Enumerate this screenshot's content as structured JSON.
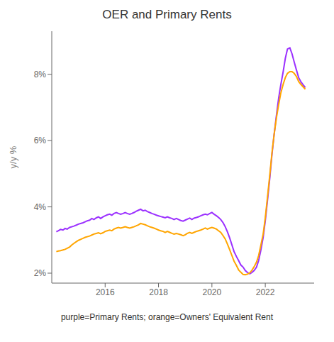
{
  "chart_data": {
    "type": "line",
    "title": "OER and Primary Rents",
    "y_label": "y/y %",
    "caption": "purple=Primary Rents; orange=Owners' Equivalent Rent",
    "xlim": [
      2014.0,
      2023.83
    ],
    "xticks": [
      2016,
      2018,
      2020,
      2022
    ],
    "ylim": [
      1.7,
      9.3
    ],
    "yticks": [
      {
        "value": 2,
        "label": "2%"
      },
      {
        "value": 4,
        "label": "4%"
      },
      {
        "value": 6,
        "label": "6%"
      },
      {
        "value": 8,
        "label": "8%"
      }
    ],
    "grid": false,
    "x": [
      2014.17,
      2014.25,
      2014.33,
      2014.42,
      2014.5,
      2014.58,
      2014.67,
      2014.75,
      2014.83,
      2014.92,
      2015.0,
      2015.08,
      2015.17,
      2015.25,
      2015.33,
      2015.42,
      2015.5,
      2015.58,
      2015.67,
      2015.75,
      2015.83,
      2015.92,
      2016.0,
      2016.08,
      2016.17,
      2016.25,
      2016.33,
      2016.42,
      2016.5,
      2016.58,
      2016.67,
      2016.75,
      2016.83,
      2016.92,
      2017.0,
      2017.08,
      2017.17,
      2017.25,
      2017.33,
      2017.42,
      2017.5,
      2017.58,
      2017.67,
      2017.75,
      2017.83,
      2017.92,
      2018.0,
      2018.08,
      2018.17,
      2018.25,
      2018.33,
      2018.42,
      2018.5,
      2018.58,
      2018.67,
      2018.75,
      2018.83,
      2018.92,
      2019.0,
      2019.08,
      2019.17,
      2019.25,
      2019.33,
      2019.42,
      2019.5,
      2019.58,
      2019.67,
      2019.75,
      2019.83,
      2019.92,
      2020.0,
      2020.08,
      2020.17,
      2020.25,
      2020.33,
      2020.42,
      2020.5,
      2020.58,
      2020.67,
      2020.75,
      2020.83,
      2020.92,
      2021.0,
      2021.08,
      2021.17,
      2021.25,
      2021.33,
      2021.42,
      2021.5,
      2021.58,
      2021.67,
      2021.75,
      2021.83,
      2021.92,
      2022.0,
      2022.08,
      2022.17,
      2022.25,
      2022.33,
      2022.42,
      2022.5,
      2022.58,
      2022.67,
      2022.75,
      2022.83,
      2022.92,
      2023.0,
      2023.08,
      2023.17,
      2023.25,
      2023.33,
      2023.42,
      2023.5
    ],
    "series": [
      {
        "color": "#9B30FF",
        "values": [
          3.25,
          3.28,
          3.32,
          3.3,
          3.35,
          3.33,
          3.38,
          3.4,
          3.42,
          3.45,
          3.48,
          3.5,
          3.52,
          3.55,
          3.58,
          3.6,
          3.65,
          3.62,
          3.67,
          3.7,
          3.65,
          3.7,
          3.73,
          3.76,
          3.78,
          3.75,
          3.8,
          3.83,
          3.8,
          3.78,
          3.8,
          3.83,
          3.8,
          3.78,
          3.8,
          3.83,
          3.87,
          3.9,
          3.93,
          3.88,
          3.9,
          3.86,
          3.83,
          3.8,
          3.78,
          3.75,
          3.73,
          3.71,
          3.69,
          3.67,
          3.7,
          3.67,
          3.65,
          3.62,
          3.65,
          3.62,
          3.59,
          3.57,
          3.6,
          3.63,
          3.66,
          3.62,
          3.66,
          3.68,
          3.7,
          3.73,
          3.76,
          3.78,
          3.76,
          3.8,
          3.83,
          3.78,
          3.73,
          3.68,
          3.62,
          3.52,
          3.4,
          3.25,
          3.05,
          2.85,
          2.65,
          2.5,
          2.38,
          2.25,
          2.18,
          2.08,
          2.02,
          1.98,
          2.02,
          2.08,
          2.18,
          2.38,
          2.68,
          3.08,
          3.58,
          4.18,
          4.88,
          5.58,
          6.18,
          6.78,
          7.28,
          7.68,
          8.08,
          8.48,
          8.76,
          8.8,
          8.62,
          8.38,
          8.12,
          7.9,
          7.78,
          7.68,
          7.6
        ]
      },
      {
        "color": "#FFA500",
        "values": [
          2.65,
          2.67,
          2.68,
          2.7,
          2.72,
          2.75,
          2.79,
          2.85,
          2.9,
          2.95,
          2.99,
          3.02,
          3.05,
          3.08,
          3.1,
          3.12,
          3.15,
          3.18,
          3.2,
          3.22,
          3.19,
          3.22,
          3.26,
          3.28,
          3.3,
          3.28,
          3.33,
          3.36,
          3.38,
          3.36,
          3.38,
          3.4,
          3.38,
          3.36,
          3.38,
          3.4,
          3.43,
          3.46,
          3.5,
          3.48,
          3.46,
          3.43,
          3.4,
          3.38,
          3.36,
          3.33,
          3.3,
          3.28,
          3.26,
          3.23,
          3.26,
          3.23,
          3.2,
          3.18,
          3.2,
          3.18,
          3.16,
          3.13,
          3.16,
          3.2,
          3.23,
          3.2,
          3.23,
          3.26,
          3.28,
          3.3,
          3.33,
          3.36,
          3.33,
          3.36,
          3.38,
          3.36,
          3.33,
          3.28,
          3.23,
          3.13,
          3.03,
          2.88,
          2.7,
          2.53,
          2.36,
          2.23,
          2.1,
          2.03,
          1.96,
          1.95,
          1.97,
          2.01,
          2.09,
          2.19,
          2.33,
          2.53,
          2.83,
          3.18,
          3.68,
          4.28,
          4.98,
          5.63,
          6.18,
          6.7,
          7.08,
          7.43,
          7.7,
          7.9,
          8.03,
          8.08,
          8.08,
          8.03,
          7.93,
          7.78,
          7.7,
          7.62,
          7.55
        ]
      }
    ]
  }
}
